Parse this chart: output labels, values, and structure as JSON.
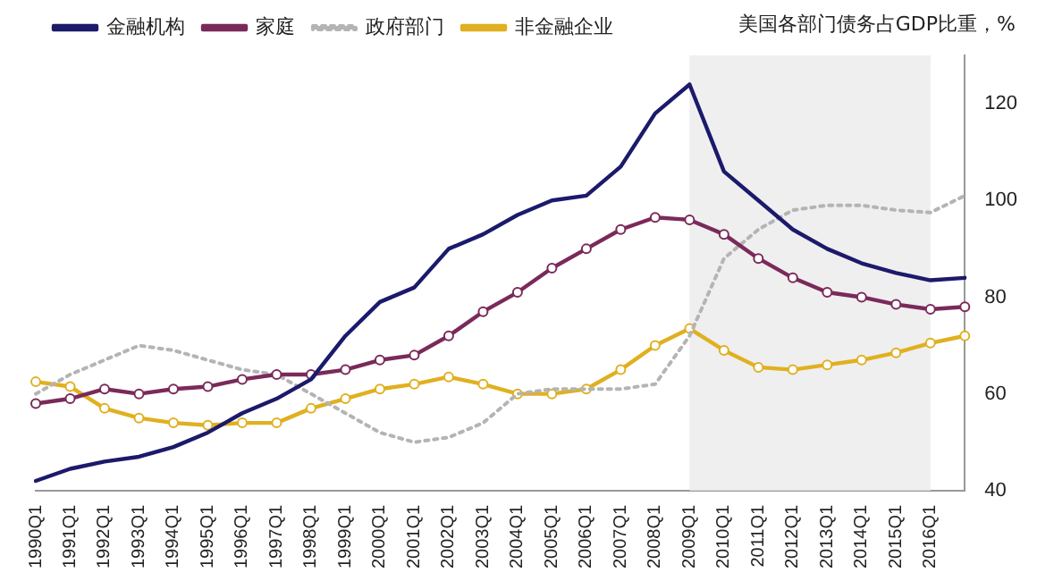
{
  "chart_data": {
    "type": "line",
    "title": "美国各部门债务占GDP比重，%",
    "categories": [
      "1990Q1",
      "1991Q1",
      "1992Q1",
      "1993Q1",
      "1994Q1",
      "1995Q1",
      "1996Q1",
      "1997Q1",
      "1998Q1",
      "1999Q1",
      "2000Q1",
      "2001Q1",
      "2002Q1",
      "2003Q1",
      "2004Q1",
      "2005Q1",
      "2006Q1",
      "2007Q1",
      "2008Q1",
      "2009Q1",
      "2010Q1",
      "2011Q1",
      "2012Q1",
      "2013Q1",
      "2014Q1",
      "2015Q1",
      "2016Q1",
      null
    ],
    "ylim": [
      40,
      130
    ],
    "yticks": [
      40,
      60,
      80,
      100,
      120
    ],
    "grid": false,
    "legend": "top left",
    "bands": [
      {
        "axis": "x",
        "from": "2009Q1",
        "to": "2016Q1",
        "color": "#efefef"
      }
    ],
    "series": [
      {
        "name": "金融机构",
        "color": "#1c1a6b",
        "marker": "none",
        "line_style": "solid",
        "values": [
          42,
          44.5,
          46,
          47,
          49,
          52,
          56,
          59,
          63,
          72,
          79,
          82,
          90,
          93,
          97,
          100,
          101,
          107,
          118,
          124,
          106,
          100,
          94,
          90,
          87,
          85,
          83.5,
          84
        ]
      },
      {
        "name": "家庭",
        "color": "#7a2a5a",
        "marker": "circle",
        "line_style": "solid",
        "values": [
          58,
          59,
          61,
          60,
          61,
          61.5,
          63,
          64,
          64,
          65,
          67,
          68,
          72,
          77,
          81,
          86,
          90,
          94,
          96.5,
          96,
          93,
          88,
          84,
          81,
          80,
          78.5,
          77.5,
          78
        ]
      },
      {
        "name": "政府部门",
        "color": "#b4b4b4",
        "marker": "none",
        "line_style": "dotted",
        "values": [
          60,
          64,
          67,
          70,
          69,
          67,
          65,
          64,
          60,
          56,
          52,
          50,
          51,
          54,
          60,
          61,
          61,
          61,
          62,
          72,
          88,
          94,
          98,
          99,
          99,
          98,
          97.5,
          101
        ]
      },
      {
        "name": "非金融企业",
        "color": "#e0b020",
        "marker": "circle",
        "line_style": "solid",
        "values": [
          62.5,
          61.5,
          57,
          55,
          54,
          53.5,
          54,
          54,
          57,
          59,
          61,
          62,
          63.5,
          62,
          60,
          60,
          61,
          65,
          70,
          73.5,
          69,
          65.5,
          65,
          66,
          67,
          68.5,
          70.5,
          72
        ]
      }
    ]
  }
}
